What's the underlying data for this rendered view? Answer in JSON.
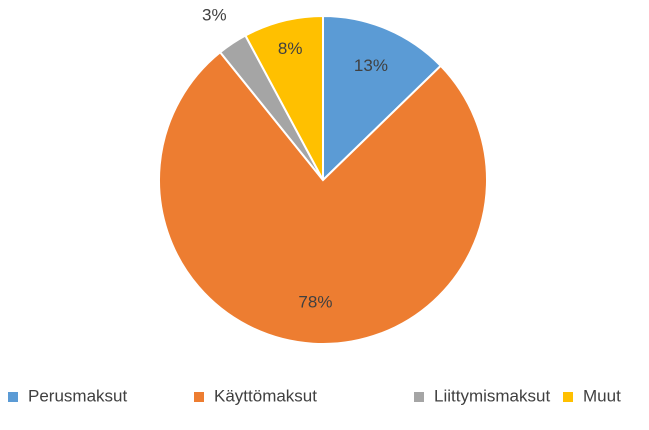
{
  "chart_data": {
    "type": "pie",
    "categories": [
      "Perusmaksut",
      "Käyttömaksut",
      "Liittymismaksut",
      "Muut"
    ],
    "values": [
      13,
      78,
      3,
      8
    ],
    "value_labels": [
      "13%",
      "78%",
      "3%",
      "8%"
    ],
    "colors": [
      "#5b9bd5",
      "#ed7d31",
      "#a5a5a5",
      "#ffc000"
    ],
    "legend": "bottom"
  }
}
